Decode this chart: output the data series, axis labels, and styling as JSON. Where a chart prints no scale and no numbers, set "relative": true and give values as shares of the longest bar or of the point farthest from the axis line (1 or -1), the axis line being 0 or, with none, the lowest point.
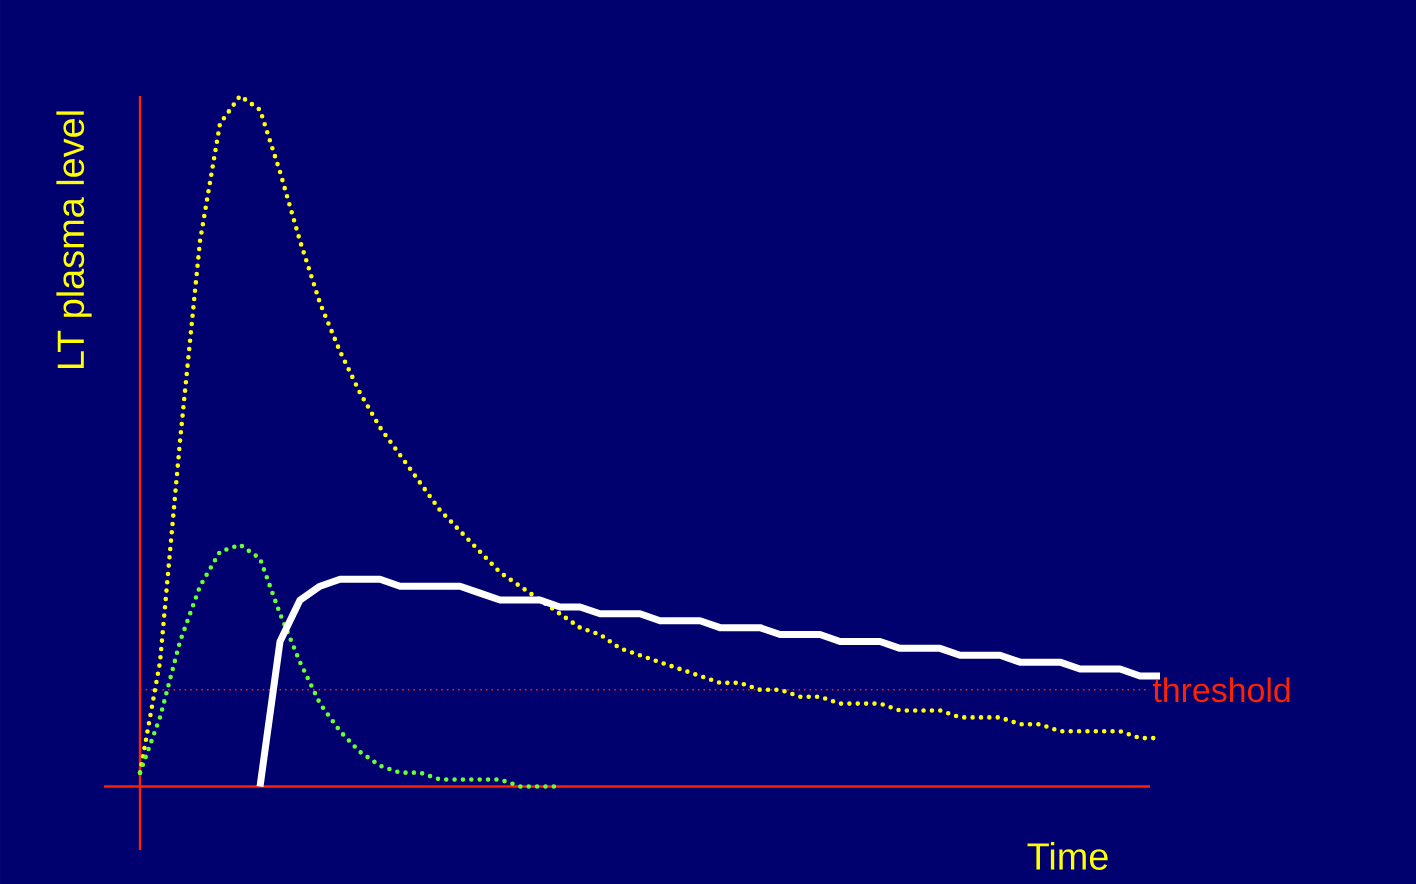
{
  "chart_data": {
    "type": "line",
    "relative": true,
    "xlabel": "Time",
    "ylabel": "LT plasma level",
    "categories": [
      null,
      null,
      null,
      null,
      null,
      null,
      null,
      null,
      null,
      null,
      null,
      null,
      null,
      null,
      null,
      null,
      null,
      null,
      null,
      null,
      null,
      null,
      null,
      null,
      null,
      null,
      null,
      null,
      null,
      null,
      null,
      null,
      null,
      null,
      null,
      null,
      null,
      null,
      null,
      null,
      null,
      null,
      null,
      null,
      null,
      null,
      null,
      null,
      null,
      null,
      null,
      null
    ],
    "series": [
      {
        "color": "#ffff00",
        "line_style": "dotted",
        "values": [
          0.02,
          0.18,
          0.5,
          0.79,
          0.96,
          1,
          0.98,
          0.89,
          0.79,
          0.7,
          0.63,
          0.57,
          0.52,
          0.48,
          0.44,
          0.4,
          0.37,
          0.34,
          0.31,
          0.29,
          0.27,
          0.25,
          0.23,
          0.22,
          0.2,
          0.19,
          0.18,
          0.17,
          0.16,
          0.15,
          0.15,
          0.14,
          0.14,
          0.13,
          0.13,
          0.12,
          0.12,
          0.12,
          0.11,
          0.11,
          0.11,
          0.1,
          0.1,
          0.1,
          0.09,
          0.09,
          0.08,
          0.08,
          0.08,
          0.08,
          0.07,
          0.07
        ]
      },
      {
        "color": "#66ff33",
        "line_style": "dotted",
        "values": [
          0.02,
          0.1,
          0.21,
          0.29,
          0.34,
          0.35,
          0.33,
          0.25,
          0.18,
          0.12,
          0.08,
          0.05,
          0.03,
          0.02,
          0.02,
          0.01,
          0.01,
          0.01,
          0.01,
          0,
          0,
          0,
          null,
          null,
          null,
          null,
          null,
          null,
          null,
          null,
          null,
          null,
          null,
          null,
          null,
          null,
          null,
          null,
          null,
          null,
          null,
          null,
          null,
          null,
          null,
          null,
          null,
          null,
          null,
          null,
          null,
          null
        ]
      },
      {
        "color": "#ffffff",
        "line_style": "solid",
        "values": [
          null,
          null,
          null,
          null,
          null,
          null,
          0,
          0.21,
          0.27,
          0.29,
          0.3,
          0.3,
          0.3,
          0.29,
          0.29,
          0.29,
          0.29,
          0.28,
          0.27,
          0.27,
          0.27,
          0.26,
          0.26,
          0.25,
          0.25,
          0.25,
          0.24,
          0.24,
          0.24,
          0.23,
          0.23,
          0.23,
          0.22,
          0.22,
          0.22,
          0.21,
          0.21,
          0.21,
          0.2,
          0.2,
          0.2,
          0.19,
          0.19,
          0.19,
          0.18,
          0.18,
          0.18,
          0.17,
          0.17,
          0.17,
          0.16,
          0.16
        ]
      }
    ],
    "ref_lines": [
      {
        "axis": "y",
        "value": 0.14,
        "label": "threshold",
        "color": "#ff2200",
        "line_style": "dotted"
      }
    ]
  }
}
